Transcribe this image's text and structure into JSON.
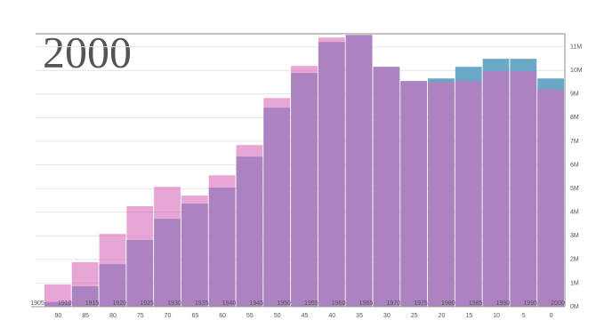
{
  "chart_data": {
    "type": "overlap-bar",
    "title": "2000",
    "categories": [
      "90",
      "85",
      "80",
      "75",
      "70",
      "65",
      "60",
      "55",
      "50",
      "45",
      "40",
      "35",
      "30",
      "25",
      "20",
      "15",
      "10",
      "5",
      "0"
    ],
    "edge_labels": [
      "1905",
      "1910",
      "1915",
      "1920",
      "1925",
      "1930",
      "1935",
      "1940",
      "1945",
      "1950",
      "1955",
      "1960",
      "1965",
      "1970",
      "1975",
      "1980",
      "1985",
      "1990",
      "1995",
      "2000"
    ],
    "series": [
      {
        "color": "#6aa8c8",
        "values": [
          0.2,
          0.86,
          1.8,
          2.82,
          3.72,
          4.36,
          5.04,
          6.35,
          8.42,
          9.89,
          11.2,
          11.5,
          10.15,
          9.55,
          9.66,
          10.15,
          10.49,
          10.49,
          9.66
        ]
      },
      {
        "color": "#d96bbb",
        "values": [
          0.94,
          1.88,
          3.08,
          4.25,
          5.07,
          4.7,
          5.56,
          6.84,
          8.83,
          10.19,
          11.39,
          11.5,
          10.15,
          9.55,
          9.5,
          9.55,
          9.96,
          9.96,
          9.2
        ]
      }
    ],
    "ylim": [
      0,
      11.55
    ],
    "yticks": [
      {
        "value": 0,
        "label": "0M"
      },
      {
        "value": 1,
        "label": "1M"
      },
      {
        "value": 2,
        "label": "2M"
      },
      {
        "value": 3,
        "label": "3M"
      },
      {
        "value": 4,
        "label": "4M"
      },
      {
        "value": 5,
        "label": "5M"
      },
      {
        "value": 6,
        "label": "6M"
      },
      {
        "value": 7,
        "label": "7M"
      },
      {
        "value": 8,
        "label": "8M"
      },
      {
        "value": 9,
        "label": "9M"
      },
      {
        "value": 10,
        "label": "10M"
      },
      {
        "value": 11,
        "label": "11M"
      }
    ],
    "grid": true
  }
}
